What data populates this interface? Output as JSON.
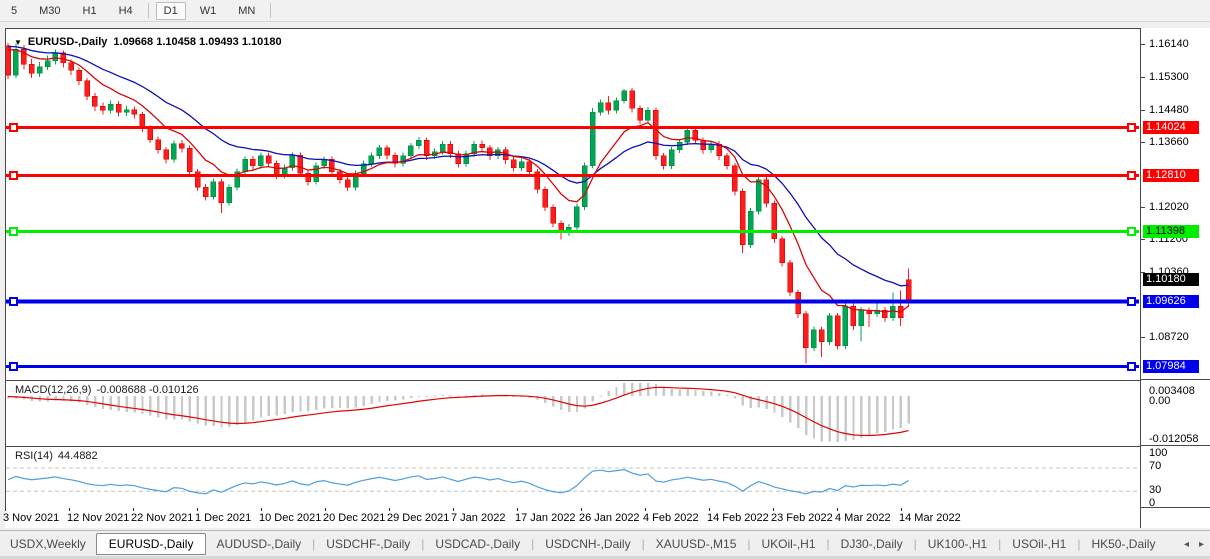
{
  "toolbar": {
    "timeframes": [
      "5",
      "M30",
      "H1",
      "H4",
      "D1",
      "W1",
      "MN"
    ],
    "active": "D1"
  },
  "chart": {
    "symbol": "EURUSD-,Daily",
    "ohlc": "1.09668 1.10458 1.09493 1.10180",
    "dropdown_icon": "symbol-dropdown",
    "price_ticks": [
      {
        "label": "1.16140",
        "price": 1.1614
      },
      {
        "label": "1.15300",
        "price": 1.153
      },
      {
        "label": "1.14480",
        "price": 1.1448
      },
      {
        "label": "1.13660",
        "price": 1.1366
      },
      {
        "label": "1.12020",
        "price": 1.1202
      },
      {
        "label": "1.11200",
        "price": 1.112
      },
      {
        "label": "1.10360",
        "price": 1.1036
      },
      {
        "label": "1.08720",
        "price": 1.0872
      }
    ],
    "levels": [
      {
        "label": "1.14024",
        "price": 1.14024,
        "color": "#ff0000",
        "text": "#ffffff",
        "thickness": 3
      },
      {
        "label": "1.12810",
        "price": 1.1281,
        "color": "#ff0000",
        "text": "#ffffff",
        "thickness": 3
      },
      {
        "label": "1.11398",
        "price": 1.11398,
        "color": "#00ee00",
        "text": "#000000",
        "thickness": 3
      },
      {
        "label": "1.09626",
        "price": 1.09626,
        "color": "#0000ee",
        "text": "#ffffff",
        "thickness": 4
      },
      {
        "label": "1.07984",
        "price": 1.07984,
        "color": "#0000ee",
        "text": "#ffffff",
        "thickness": 3
      }
    ],
    "current_price": {
      "label": "1.10180",
      "price": 1.1018,
      "bg": "#000000",
      "text": "#ffffff"
    },
    "colors": {
      "bull": "#00a651",
      "bull_edge": "#008542",
      "bear": "#fd1d1d",
      "bear_edge": "#cc0000",
      "ma_slow": "#0f0fb4",
      "ma_fast": "#d40808",
      "background": "#ffffff"
    },
    "candles": [
      [
        1.161,
        1.1616,
        1.1525,
        1.1535
      ],
      [
        1.1535,
        1.1615,
        1.1528,
        1.1601
      ],
      [
        1.1601,
        1.1612,
        1.1549,
        1.1563
      ],
      [
        1.1563,
        1.1576,
        1.1528,
        1.154
      ],
      [
        1.154,
        1.1568,
        1.153,
        1.1556
      ],
      [
        1.1556,
        1.1585,
        1.1548,
        1.1572
      ],
      [
        1.1572,
        1.16,
        1.1562,
        1.1592
      ],
      [
        1.1592,
        1.1598,
        1.1554,
        1.1566
      ],
      [
        1.1566,
        1.1575,
        1.1536,
        1.1547
      ],
      [
        1.1547,
        1.1555,
        1.151,
        1.1521
      ],
      [
        1.1521,
        1.1528,
        1.1472,
        1.1482
      ],
      [
        1.1482,
        1.149,
        1.1445,
        1.1456
      ],
      [
        1.1456,
        1.1466,
        1.1436,
        1.1447
      ],
      [
        1.1447,
        1.1471,
        1.1438,
        1.1462
      ],
      [
        1.1462,
        1.147,
        1.1431,
        1.1441
      ],
      [
        1.1441,
        1.1458,
        1.1432,
        1.1448
      ],
      [
        1.1448,
        1.1456,
        1.1425,
        1.1436
      ],
      [
        1.1436,
        1.1442,
        1.1392,
        1.1401
      ],
      [
        1.1401,
        1.1408,
        1.1363,
        1.1372
      ],
      [
        1.1372,
        1.138,
        1.1337,
        1.1347
      ],
      [
        1.1347,
        1.1354,
        1.1312,
        1.1322
      ],
      [
        1.1322,
        1.137,
        1.1314,
        1.1362
      ],
      [
        1.1362,
        1.1371,
        1.134,
        1.135
      ],
      [
        1.135,
        1.1357,
        1.1282,
        1.1291
      ],
      [
        1.1291,
        1.1298,
        1.1242,
        1.1252
      ],
      [
        1.1252,
        1.126,
        1.1218,
        1.1228
      ],
      [
        1.1228,
        1.1274,
        1.122,
        1.1266
      ],
      [
        1.1266,
        1.1272,
        1.1186,
        1.1213
      ],
      [
        1.1213,
        1.1259,
        1.1205,
        1.1251
      ],
      [
        1.1251,
        1.1299,
        1.1243,
        1.1291
      ],
      [
        1.1291,
        1.133,
        1.1283,
        1.1322
      ],
      [
        1.1322,
        1.1331,
        1.1296,
        1.1306
      ],
      [
        1.1306,
        1.1339,
        1.1298,
        1.1331
      ],
      [
        1.1331,
        1.134,
        1.1302,
        1.1312
      ],
      [
        1.1312,
        1.1319,
        1.1272,
        1.1282
      ],
      [
        1.1282,
        1.1309,
        1.1274,
        1.1301
      ],
      [
        1.1301,
        1.134,
        1.1293,
        1.1332
      ],
      [
        1.1332,
        1.1339,
        1.1278,
        1.1287
      ],
      [
        1.1287,
        1.1294,
        1.1256,
        1.1266
      ],
      [
        1.1266,
        1.1314,
        1.1258,
        1.1306
      ],
      [
        1.1306,
        1.133,
        1.1298,
        1.1322
      ],
      [
        1.1322,
        1.1329,
        1.1281,
        1.1291
      ],
      [
        1.1291,
        1.1298,
        1.1261,
        1.1271
      ],
      [
        1.1271,
        1.1278,
        1.1242,
        1.1252
      ],
      [
        1.1252,
        1.1294,
        1.1244,
        1.1286
      ],
      [
        1.1286,
        1.1319,
        1.1278,
        1.1311
      ],
      [
        1.1311,
        1.1339,
        1.1303,
        1.1331
      ],
      [
        1.1331,
        1.1359,
        1.1323,
        1.1351
      ],
      [
        1.1351,
        1.1358,
        1.1322,
        1.1332
      ],
      [
        1.1332,
        1.1339,
        1.1302,
        1.1312
      ],
      [
        1.1312,
        1.1339,
        1.1304,
        1.1331
      ],
      [
        1.1331,
        1.1364,
        1.1323,
        1.1356
      ],
      [
        1.1356,
        1.1379,
        1.1348,
        1.1371
      ],
      [
        1.1371,
        1.1378,
        1.1321,
        1.1331
      ],
      [
        1.1331,
        1.135,
        1.1323,
        1.1342
      ],
      [
        1.1342,
        1.1369,
        1.1334,
        1.1361
      ],
      [
        1.1361,
        1.1368,
        1.1326,
        1.1336
      ],
      [
        1.1336,
        1.1343,
        1.1301,
        1.1311
      ],
      [
        1.1311,
        1.1344,
        1.1303,
        1.1336
      ],
      [
        1.1336,
        1.1369,
        1.1328,
        1.1361
      ],
      [
        1.1361,
        1.137,
        1.1341,
        1.1351
      ],
      [
        1.1351,
        1.1358,
        1.1321,
        1.1331
      ],
      [
        1.1331,
        1.1354,
        1.1323,
        1.1346
      ],
      [
        1.1346,
        1.1353,
        1.1311,
        1.1321
      ],
      [
        1.1321,
        1.1328,
        1.1291,
        1.1301
      ],
      [
        1.1301,
        1.1324,
        1.1293,
        1.1316
      ],
      [
        1.1316,
        1.1323,
        1.1281,
        1.1291
      ],
      [
        1.1291,
        1.1298,
        1.1236,
        1.1246
      ],
      [
        1.1246,
        1.1253,
        1.1191,
        1.1201
      ],
      [
        1.1201,
        1.1208,
        1.1151,
        1.1161
      ],
      [
        1.1161,
        1.1168,
        1.1119,
        1.1136
      ],
      [
        1.1136,
        1.1159,
        1.1128,
        1.1151
      ],
      [
        1.1151,
        1.121,
        1.1143,
        1.1202
      ],
      [
        1.1202,
        1.1314,
        1.1194,
        1.1306
      ],
      [
        1.1306,
        1.1452,
        1.13,
        1.1441
      ],
      [
        1.1441,
        1.1474,
        1.1433,
        1.1466
      ],
      [
        1.1466,
        1.1483,
        1.1436,
        1.1446
      ],
      [
        1.1446,
        1.1479,
        1.1438,
        1.1471
      ],
      [
        1.1471,
        1.15,
        1.1463,
        1.1496
      ],
      [
        1.1496,
        1.1503,
        1.1441,
        1.1451
      ],
      [
        1.1451,
        1.1458,
        1.1411,
        1.1421
      ],
      [
        1.1421,
        1.1454,
        1.1413,
        1.1446
      ],
      [
        1.1446,
        1.1453,
        1.1321,
        1.1331
      ],
      [
        1.1331,
        1.1338,
        1.1296,
        1.1306
      ],
      [
        1.1306,
        1.1354,
        1.1298,
        1.1346
      ],
      [
        1.1346,
        1.1374,
        1.1338,
        1.1366
      ],
      [
        1.1366,
        1.1404,
        1.1358,
        1.1396
      ],
      [
        1.1396,
        1.1403,
        1.1361,
        1.1371
      ],
      [
        1.1371,
        1.1378,
        1.1336,
        1.1346
      ],
      [
        1.1346,
        1.1369,
        1.1338,
        1.1361
      ],
      [
        1.1361,
        1.1368,
        1.1321,
        1.1331
      ],
      [
        1.1331,
        1.1338,
        1.1296,
        1.1306
      ],
      [
        1.1306,
        1.1313,
        1.1231,
        1.1241
      ],
      [
        1.1241,
        1.1248,
        1.1085,
        1.1106
      ],
      [
        1.1106,
        1.1199,
        1.1098,
        1.1191
      ],
      [
        1.1191,
        1.1279,
        1.1183,
        1.1271
      ],
      [
        1.1271,
        1.1278,
        1.1201,
        1.1211
      ],
      [
        1.1211,
        1.1218,
        1.1111,
        1.1121
      ],
      [
        1.1121,
        1.1128,
        1.1051,
        1.1061
      ],
      [
        1.1061,
        1.1068,
        1.0976,
        1.0986
      ],
      [
        1.0986,
        1.0993,
        1.0921,
        1.0931
      ],
      [
        1.0931,
        1.0938,
        1.0806,
        1.0846
      ],
      [
        1.0846,
        1.0899,
        1.0838,
        1.0891
      ],
      [
        1.0891,
        1.0898,
        1.0822,
        1.0861
      ],
      [
        1.0861,
        1.0934,
        1.0853,
        1.0926
      ],
      [
        1.0926,
        1.0933,
        1.0841,
        1.0851
      ],
      [
        1.0851,
        1.0961,
        1.0843,
        1.0951
      ],
      [
        1.0951,
        1.0958,
        1.0891,
        1.0901
      ],
      [
        1.0901,
        1.0949,
        1.0862,
        1.0941
      ],
      [
        1.0941,
        1.0948,
        1.0898,
        1.0931
      ],
      [
        1.0931,
        1.0965,
        1.0923,
        1.0941
      ],
      [
        1.0941,
        1.0949,
        1.0911,
        1.0921
      ],
      [
        1.0921,
        1.0985,
        1.0913,
        1.0951
      ],
      [
        1.0951,
        1.099,
        1.09,
        1.0921
      ],
      [
        1.0967,
        1.1046,
        1.0949,
        1.1018,
        "r"
      ]
    ]
  },
  "macd": {
    "name": "MACD(12,26,9)",
    "values": "-0.008688 -0.010126",
    "axis": [
      "0.003408",
      "0.00",
      "-0.012058"
    ],
    "histogram_color": "#c9c9c9",
    "signal_color": "#e00404"
  },
  "rsi": {
    "name": "RSI(14)",
    "value": "44.4882",
    "axis": [
      "100",
      "70",
      "30",
      "0"
    ],
    "line_color": "#4d9fe0",
    "level_lines": [
      70,
      30
    ]
  },
  "time_axis": {
    "labels": [
      "3 Nov 2021",
      "12 Nov 2021",
      "22 Nov 2021",
      "1 Dec 2021",
      "10 Dec 2021",
      "20 Dec 2021",
      "29 Dec 2021",
      "7 Jan 2022",
      "17 Jan 2022",
      "26 Jan 2022",
      "4 Feb 2022",
      "14 Feb 2022",
      "23 Feb 2022",
      "4 Mar 2022",
      "14 Mar 2022"
    ]
  },
  "tabs": {
    "items": [
      "USDX,Weekly",
      "EURUSD-,Daily",
      "AUDUSD-,Daily",
      "USDCHF-,Daily",
      "USDCAD-,Daily",
      "USDCNH-,Daily",
      "XAUUSD-,M15",
      "UKOil-,H1",
      "DJ30-,Daily",
      "UK100-,H1",
      "USOil-,H1",
      "HK50-,Daily"
    ],
    "active_index": 1,
    "scroll_left_icon": "◂",
    "scroll_right_icon": "▸"
  }
}
